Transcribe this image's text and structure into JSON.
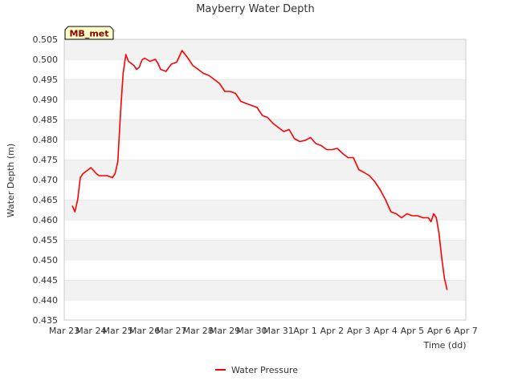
{
  "chart_data": {
    "type": "line",
    "title": "Mayberry Water Depth",
    "xlabel": "Time (dd)",
    "ylabel": "Water Depth (m)",
    "station_label": "MB_met",
    "ylim": [
      0.435,
      0.505
    ],
    "xlim": [
      0,
      15
    ],
    "y_ticks": [
      "0.435",
      "0.440",
      "0.445",
      "0.450",
      "0.455",
      "0.460",
      "0.465",
      "0.470",
      "0.475",
      "0.480",
      "0.485",
      "0.490",
      "0.495",
      "0.500",
      "0.505"
    ],
    "x_ticks": [
      "Mar 23",
      "Mar 24",
      "Mar 25",
      "Mar 26",
      "Mar 27",
      "Mar 28",
      "Mar 29",
      "Mar 30",
      "Mar 31",
      "Apr 1",
      "Apr 2",
      "Apr 3",
      "Apr 4",
      "Apr 5",
      "Apr 6",
      "Apr 7"
    ],
    "legend_position": "bottom-center",
    "series": [
      {
        "name": "Water Pressure",
        "color": "#ff0000",
        "x": [
          0.3,
          0.4,
          0.5,
          0.6,
          0.7,
          0.8,
          1.0,
          1.2,
          1.3,
          1.4,
          1.6,
          1.8,
          1.9,
          2.0,
          2.1,
          2.2,
          2.3,
          2.4,
          2.5,
          2.6,
          2.7,
          2.8,
          2.9,
          3.0,
          3.2,
          3.4,
          3.5,
          3.6,
          3.8,
          4.0,
          4.2,
          4.4,
          4.6,
          4.8,
          5.0,
          5.2,
          5.4,
          5.6,
          5.8,
          6.0,
          6.2,
          6.4,
          6.6,
          6.8,
          7.0,
          7.2,
          7.4,
          7.6,
          7.8,
          8.0,
          8.2,
          8.4,
          8.6,
          8.8,
          9.0,
          9.2,
          9.4,
          9.6,
          9.8,
          10.0,
          10.2,
          10.4,
          10.6,
          10.8,
          11.0,
          11.2,
          11.4,
          11.6,
          11.8,
          12.0,
          12.2,
          12.4,
          12.6,
          12.8,
          13.0,
          13.2,
          13.4,
          13.6,
          13.7,
          13.8,
          13.9,
          14.0,
          14.1,
          14.2,
          14.3
        ],
        "values": [
          0.4635,
          0.462,
          0.465,
          0.4705,
          0.4715,
          0.472,
          0.473,
          0.4715,
          0.471,
          0.471,
          0.471,
          0.4705,
          0.4715,
          0.4745,
          0.4865,
          0.4965,
          0.5012,
          0.4995,
          0.499,
          0.4985,
          0.4975,
          0.498,
          0.4998,
          0.5003,
          0.4995,
          0.5,
          0.499,
          0.4975,
          0.497,
          0.4988,
          0.4993,
          0.5022,
          0.5005,
          0.4985,
          0.4975,
          0.4965,
          0.496,
          0.495,
          0.494,
          0.492,
          0.492,
          0.4915,
          0.4895,
          0.489,
          0.4885,
          0.488,
          0.486,
          0.4855,
          0.484,
          0.483,
          0.482,
          0.4825,
          0.4802,
          0.4795,
          0.4798,
          0.4805,
          0.479,
          0.4785,
          0.4775,
          0.4775,
          0.4778,
          0.4765,
          0.4755,
          0.4755,
          0.4725,
          0.4718,
          0.471,
          0.4695,
          0.4675,
          0.465,
          0.462,
          0.4615,
          0.4605,
          0.4615,
          0.461,
          0.461,
          0.4605,
          0.4605,
          0.4595,
          0.4615,
          0.4605,
          0.4565,
          0.4505,
          0.4455,
          0.4425
        ]
      }
    ]
  }
}
